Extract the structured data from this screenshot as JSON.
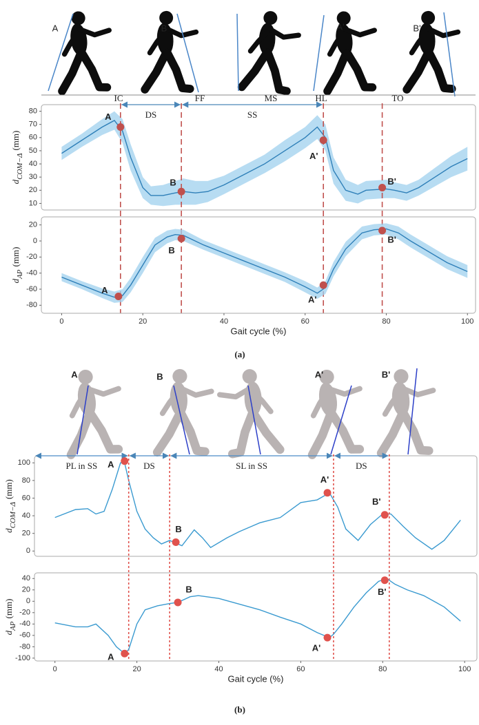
{
  "figure_a": {
    "poses": [
      "A",
      "B",
      "A'",
      "B'"
    ],
    "events": [
      "IC",
      "FF",
      "MS",
      "HL",
      "TO"
    ],
    "caption": "(a)"
  },
  "figure_b": {
    "poses": [
      "A",
      "B",
      "A'",
      "B'"
    ],
    "caption": "(b)"
  },
  "chart_data": [
    {
      "type": "line",
      "color": "#2e7fb8",
      "band_color": "#9fd0ee",
      "ylabel": {
        "symbol": "d",
        "subscript": "COM−Δ",
        "unit": "(mm)"
      },
      "xlim": [
        -5,
        102
      ],
      "ylim": [
        5,
        85
      ],
      "yticks": [
        10,
        20,
        30,
        40,
        50,
        60,
        70,
        80
      ],
      "x": [
        0,
        5,
        10,
        13,
        15,
        17,
        20,
        22,
        25,
        28,
        30,
        33,
        36,
        40,
        45,
        50,
        55,
        60,
        63,
        65,
        67,
        70,
        73,
        75,
        80,
        82,
        85,
        88,
        92,
        96,
        100
      ],
      "values": [
        48,
        58,
        68,
        73,
        65,
        45,
        22,
        16,
        16,
        18,
        19,
        18,
        19,
        24,
        32,
        40,
        50,
        60,
        68,
        60,
        35,
        20,
        17,
        20,
        21,
        20,
        18,
        22,
        30,
        38,
        44
      ],
      "band": [
        5,
        5,
        6,
        7,
        9,
        10,
        8,
        7,
        8,
        9,
        10,
        9,
        8,
        7,
        7,
        7,
        8,
        8,
        9,
        10,
        10,
        8,
        7,
        7,
        7,
        6,
        6,
        6,
        7,
        8,
        9
      ],
      "vlines": [
        14.5,
        29.5,
        64.5,
        79
      ],
      "phases": [
        {
          "label": "DS",
          "from": 14.5,
          "to": 29.5
        },
        {
          "label": "SS",
          "from": 29.5,
          "to": 64.5
        }
      ],
      "markers": [
        {
          "label": "A",
          "x": 14.5,
          "y": 68
        },
        {
          "label": "B",
          "x": 29.5,
          "y": 19
        },
        {
          "label": "A'",
          "x": 64.5,
          "y": 58
        },
        {
          "label": "B'",
          "x": 79,
          "y": 22
        }
      ]
    },
    {
      "type": "line",
      "color": "#2e7fb8",
      "band_color": "#9fd0ee",
      "ylabel": {
        "symbol": "d",
        "subscript": "AP",
        "unit": "(mm)"
      },
      "xlabel": "Gait cycle (%)",
      "xlim": [
        -5,
        102
      ],
      "ylim": [
        -90,
        30
      ],
      "yticks": [
        -80,
        -60,
        -40,
        -20,
        0,
        20
      ],
      "xticks": [
        0,
        20,
        40,
        60,
        80,
        100
      ],
      "x": [
        0,
        5,
        10,
        13,
        15,
        17,
        20,
        23,
        26,
        28,
        30,
        35,
        40,
        45,
        50,
        55,
        60,
        63,
        65,
        67,
        70,
        74,
        77,
        80,
        83,
        86,
        90,
        95,
        100
      ],
      "values": [
        -45,
        -55,
        -65,
        -70,
        -68,
        -55,
        -30,
        -5,
        5,
        8,
        7,
        -5,
        -15,
        -25,
        -35,
        -45,
        -57,
        -65,
        -58,
        -35,
        -10,
        10,
        14,
        15,
        10,
        0,
        -12,
        -27,
        -38
      ],
      "band": [
        5,
        5,
        6,
        7,
        8,
        9,
        10,
        9,
        8,
        7,
        7,
        6,
        6,
        6,
        6,
        6,
        7,
        7,
        8,
        9,
        9,
        8,
        7,
        7,
        8,
        8,
        8,
        8,
        8
      ],
      "markers": [
        {
          "label": "A",
          "x": 14,
          "y": -69
        },
        {
          "label": "B",
          "x": 29.5,
          "y": 3
        },
        {
          "label": "A'",
          "x": 64.5,
          "y": -55
        },
        {
          "label": "B'",
          "x": 79,
          "y": 13
        }
      ]
    },
    {
      "type": "line",
      "color": "#3a9ad0",
      "ylabel": {
        "symbol": "d",
        "subscript": "COM−Δ",
        "unit": "(mm)"
      },
      "xlim": [
        -5,
        103
      ],
      "ylim": [
        -6,
        108
      ],
      "yticks": [
        0,
        20,
        40,
        60,
        80,
        100
      ],
      "x": [
        0,
        5,
        8,
        10,
        12,
        14,
        16,
        17,
        18,
        20,
        22,
        24,
        26,
        28,
        29,
        31,
        34,
        36,
        38,
        42,
        45,
        50,
        55,
        60,
        64,
        67,
        69,
        71,
        74,
        77,
        80,
        82,
        85,
        88,
        92,
        95,
        99
      ],
      "values": [
        38,
        47,
        48,
        42,
        45,
        70,
        100,
        100,
        80,
        45,
        25,
        15,
        8,
        12,
        10,
        6,
        24,
        15,
        4,
        15,
        22,
        32,
        38,
        55,
        58,
        66,
        50,
        25,
        12,
        30,
        42,
        42,
        28,
        15,
        2,
        12,
        35
      ],
      "vlines": [
        18,
        28,
        68,
        81.6
      ],
      "phases": [
        {
          "label": "PL in SS",
          "from": -5,
          "to": 18
        },
        {
          "label": "DS",
          "from": 18,
          "to": 28
        },
        {
          "label": "SL in SS",
          "from": 28,
          "to": 68
        },
        {
          "label": "DS",
          "from": 68,
          "to": 81.6
        }
      ],
      "markers": [
        {
          "label": "A",
          "x": 17,
          "y": 102
        },
        {
          "label": "B",
          "x": 29.5,
          "y": 10
        },
        {
          "label": "A'",
          "x": 66.5,
          "y": 66
        },
        {
          "label": "B'",
          "x": 80.5,
          "y": 41
        }
      ]
    },
    {
      "type": "line",
      "color": "#3a9ad0",
      "ylabel": {
        "symbol": "d",
        "subscript": "AP",
        "unit": "(mm)"
      },
      "xlabel": "Gait cycle (%)",
      "xlim": [
        -5,
        103
      ],
      "ylim": [
        -105,
        50
      ],
      "yticks": [
        -100,
        -80,
        -60,
        -40,
        -20,
        0,
        20,
        40
      ],
      "xticks": [
        0,
        20,
        40,
        60,
        80,
        100
      ],
      "x": [
        0,
        5,
        8,
        10,
        13,
        15,
        17,
        18,
        20,
        22,
        25,
        28,
        30,
        33,
        35,
        40,
        45,
        50,
        55,
        60,
        64,
        67,
        68,
        70,
        73,
        76,
        79,
        81,
        83,
        86,
        90,
        95,
        99
      ],
      "values": [
        -38,
        -45,
        -45,
        -40,
        -60,
        -80,
        -92,
        -85,
        -40,
        -15,
        -8,
        -4,
        -2,
        8,
        10,
        5,
        -5,
        -15,
        -28,
        -40,
        -55,
        -64,
        -58,
        -40,
        -10,
        15,
        35,
        40,
        30,
        20,
        10,
        -10,
        -35
      ],
      "markers": [
        {
          "label": "A",
          "x": 17,
          "y": -92
        },
        {
          "label": "B",
          "x": 30,
          "y": -2
        },
        {
          "label": "A'",
          "x": 66.5,
          "y": -64
        },
        {
          "label": "B'",
          "x": 80.5,
          "y": 37
        }
      ]
    }
  ]
}
